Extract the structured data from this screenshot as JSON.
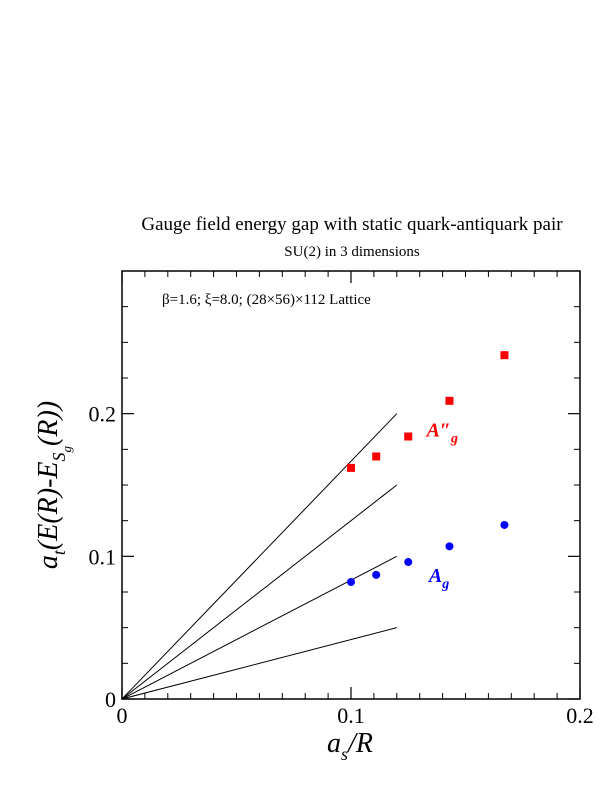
{
  "chart_data": {
    "type": "scatter",
    "title": "Gauge field energy gap with static quark-antiquark pair",
    "subtitle": "SU(2) in 3 dimensions",
    "annotation": "β=1.6; ξ=8.0; (28×56)×112 Lattice",
    "xlabel": {
      "main": "a",
      "sub": "s",
      "rest": "/R"
    },
    "ylabel": {
      "main": "a",
      "sub": "t",
      "rest": "(E(R)-E",
      "sub2": "S",
      "sub3": "g",
      "tail": "(R))"
    },
    "xlim": [
      0,
      0.2
    ],
    "ylim": [
      0,
      0.3
    ],
    "xticks": [
      {
        "value": 0,
        "label": "0"
      },
      {
        "value": 0.1,
        "label": "0.1"
      },
      {
        "value": 0.2,
        "label": "0.2"
      }
    ],
    "yticks": [
      {
        "value": 0,
        "label": "0"
      },
      {
        "value": 0.1,
        "label": "0.1"
      },
      {
        "value": 0.2,
        "label": "0.2"
      }
    ],
    "x_minor_step": 0.01,
    "y_minor_step": 0.025,
    "series": [
      {
        "name": "A″",
        "label_sub": "g",
        "label_pos": [
          0.133,
          0.184
        ],
        "color": "#ff0000",
        "marker": "square",
        "points": [
          {
            "x": 0.1,
            "y": 0.162
          },
          {
            "x": 0.111,
            "y": 0.17
          },
          {
            "x": 0.125,
            "y": 0.184
          },
          {
            "x": 0.143,
            "y": 0.209
          },
          {
            "x": 0.167,
            "y": 0.241
          }
        ]
      },
      {
        "name": "A",
        "label_sub": "g",
        "label_pos": [
          0.134,
          0.082
        ],
        "color": "#0000ff",
        "marker": "circle",
        "points": [
          {
            "x": 0.1,
            "y": 0.082
          },
          {
            "x": 0.111,
            "y": 0.087
          },
          {
            "x": 0.125,
            "y": 0.096
          },
          {
            "x": 0.143,
            "y": 0.107
          },
          {
            "x": 0.167,
            "y": 0.122
          }
        ]
      }
    ],
    "reference_lines": [
      {
        "x0": 0,
        "y0": 0,
        "x1": 0.12,
        "y1": 0.2
      },
      {
        "x0": 0,
        "y0": 0,
        "x1": 0.12,
        "y1": 0.15
      },
      {
        "x0": 0,
        "y0": 0,
        "x1": 0.12,
        "y1": 0.1
      },
      {
        "x0": 0,
        "y0": 0,
        "x1": 0.12,
        "y1": 0.05
      }
    ]
  }
}
